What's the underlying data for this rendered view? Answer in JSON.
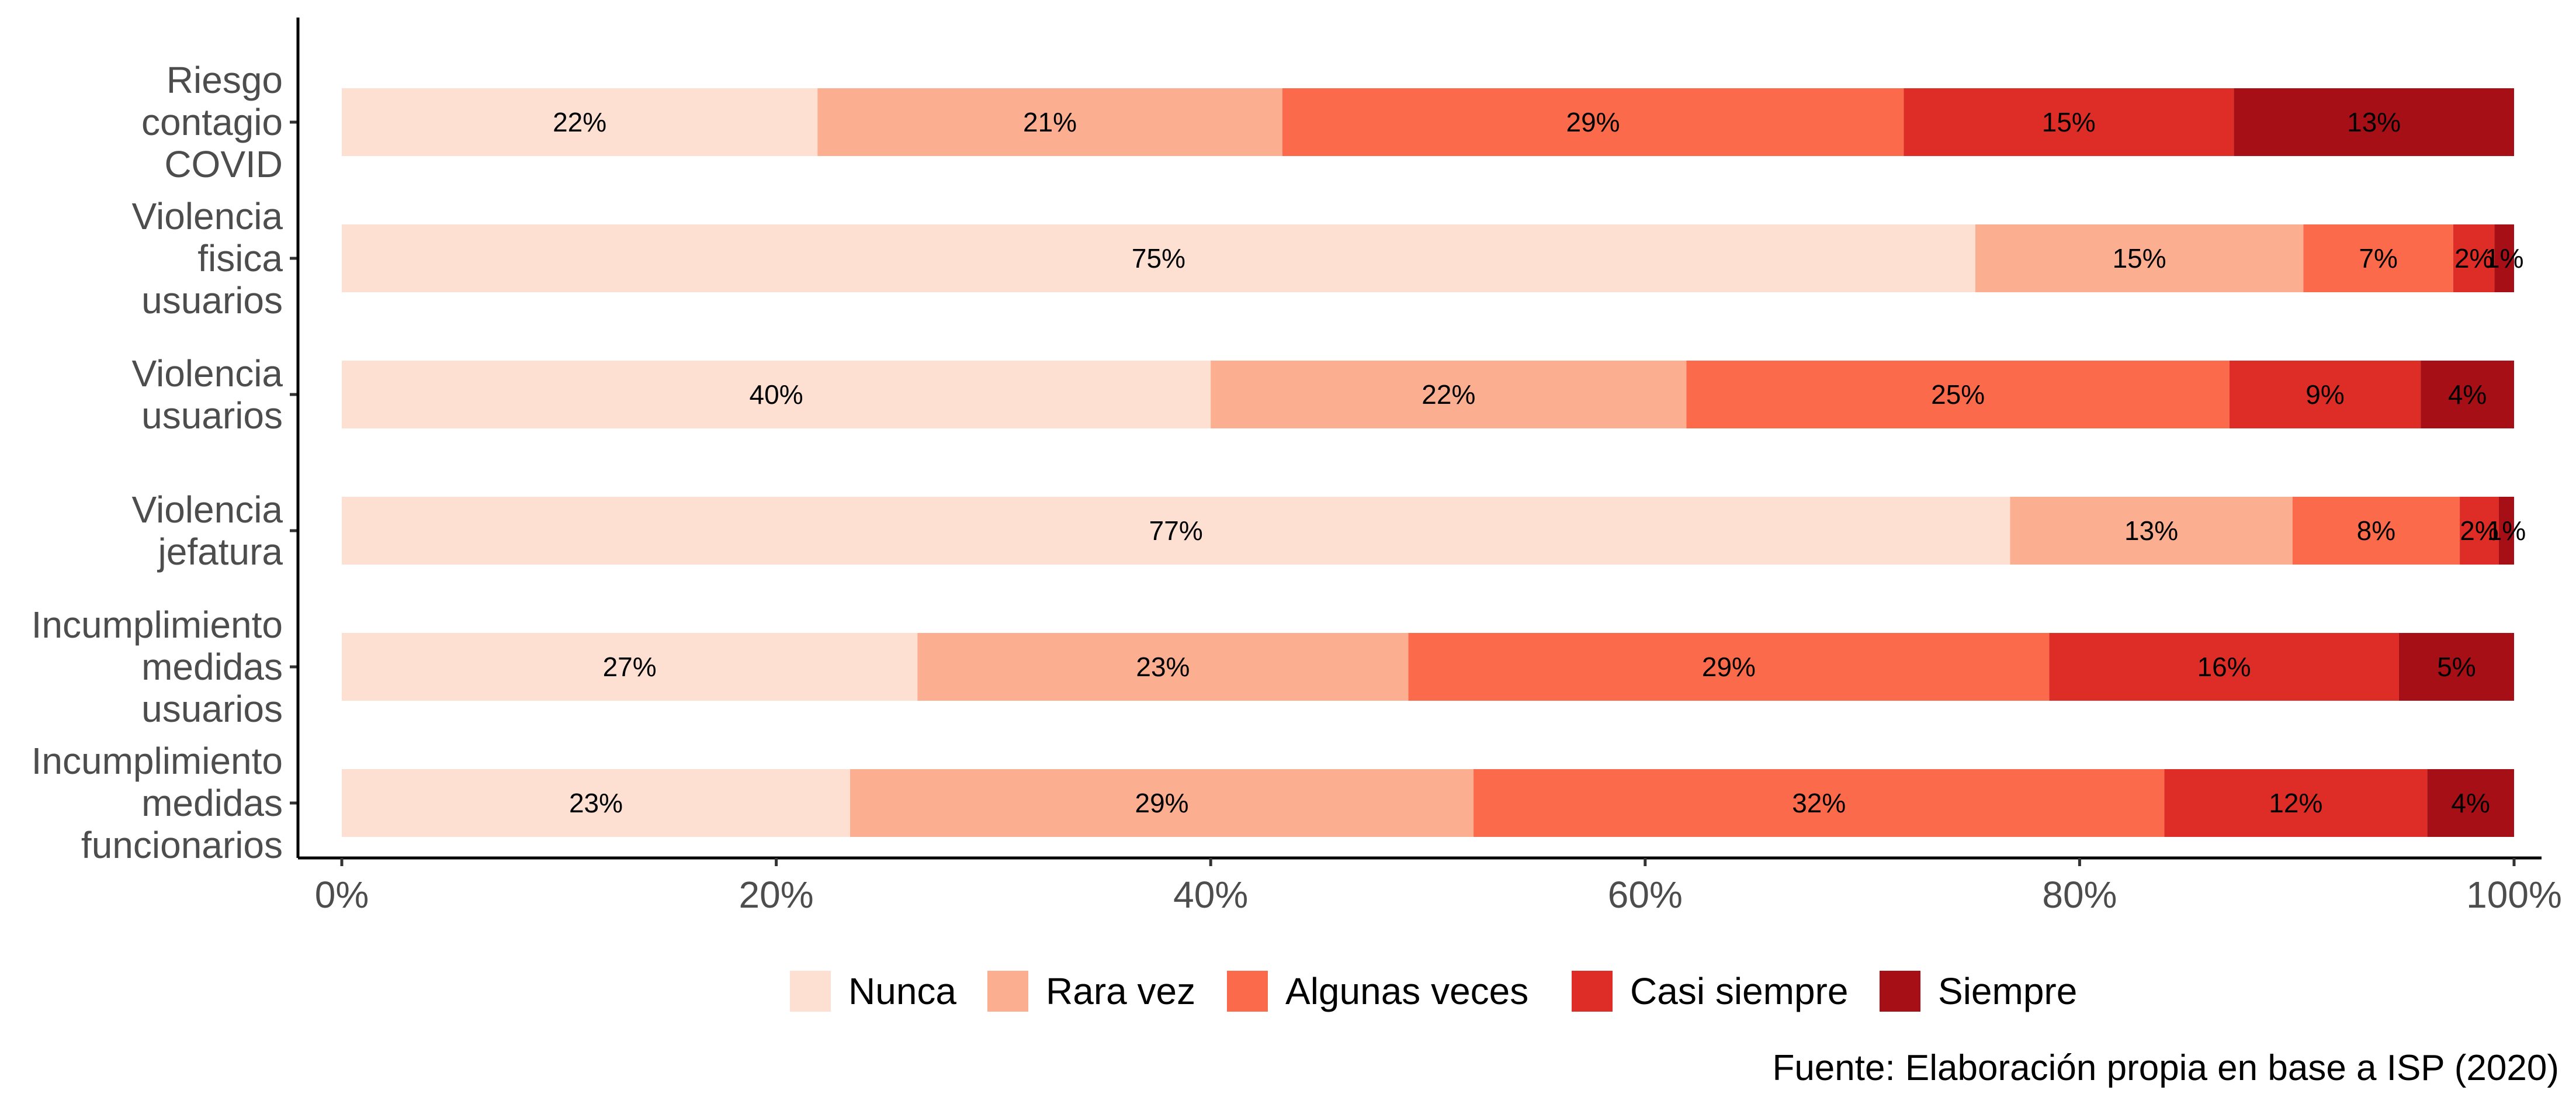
{
  "chart_data": {
    "type": "bar",
    "orientation": "horizontal",
    "stacked": true,
    "percent_scale": true,
    "categories": [
      "Riesgo contagio COVID",
      "Violencia fisica usuarios",
      "Violencia usuarios",
      "Violencia jefatura",
      "Incumplimiento medidas usuarios",
      "Incumplimiento medidas funcionarios"
    ],
    "category_lines": [
      [
        "Riesgo",
        "contagio",
        "COVID"
      ],
      [
        "Violencia",
        "fisica",
        "usuarios"
      ],
      [
        "Violencia",
        "usuarios"
      ],
      [
        "Violencia",
        "jefatura"
      ],
      [
        "Incumplimiento",
        "medidas",
        "usuarios"
      ],
      [
        "Incumplimiento",
        "medidas",
        "funcionarios"
      ]
    ],
    "series": [
      {
        "name": "Nunca",
        "color": "#FEE0D2",
        "values": [
          21.9,
          75.2,
          40.0,
          76.8,
          26.5,
          23.4
        ],
        "labels": [
          "22%",
          "75%",
          "40%",
          "77%",
          "27%",
          "23%"
        ]
      },
      {
        "name": "Rara vez",
        "color": "#FCAE91",
        "values": [
          21.4,
          15.1,
          21.9,
          13.0,
          22.6,
          28.7
        ],
        "labels": [
          "21%",
          "15%",
          "22%",
          "13%",
          "23%",
          "29%"
        ]
      },
      {
        "name": "Algunas veces",
        "color": "#FB6A4A",
        "values": [
          28.6,
          6.9,
          25.0,
          7.7,
          29.5,
          31.8
        ],
        "labels": [
          "29%",
          "7%",
          "25%",
          "8%",
          "29%",
          "32%"
        ]
      },
      {
        "name": "Casi siempre",
        "color": "#DE2D26",
        "values": [
          15.2,
          1.9,
          8.8,
          1.8,
          16.1,
          12.1
        ],
        "labels": [
          "15%",
          "2%",
          "9%",
          "2%",
          "16%",
          "12%"
        ]
      },
      {
        "name": "Siempre",
        "color": "#A50F15",
        "values": [
          12.9,
          0.9,
          4.3,
          0.7,
          5.3,
          4.0
        ],
        "labels": [
          "13%",
          "1%",
          "4%",
          "1%",
          "5%",
          "4%"
        ]
      }
    ],
    "xlim": [
      0,
      100
    ],
    "x_ticks": [
      0,
      20,
      40,
      60,
      80,
      100
    ],
    "x_tick_labels": [
      "0%",
      "20%",
      "40%",
      "60%",
      "80%",
      "100%"
    ],
    "legend_position": "bottom",
    "grid": false,
    "caption": "Fuente: Elaboración propia en base a ISP (2020)"
  }
}
